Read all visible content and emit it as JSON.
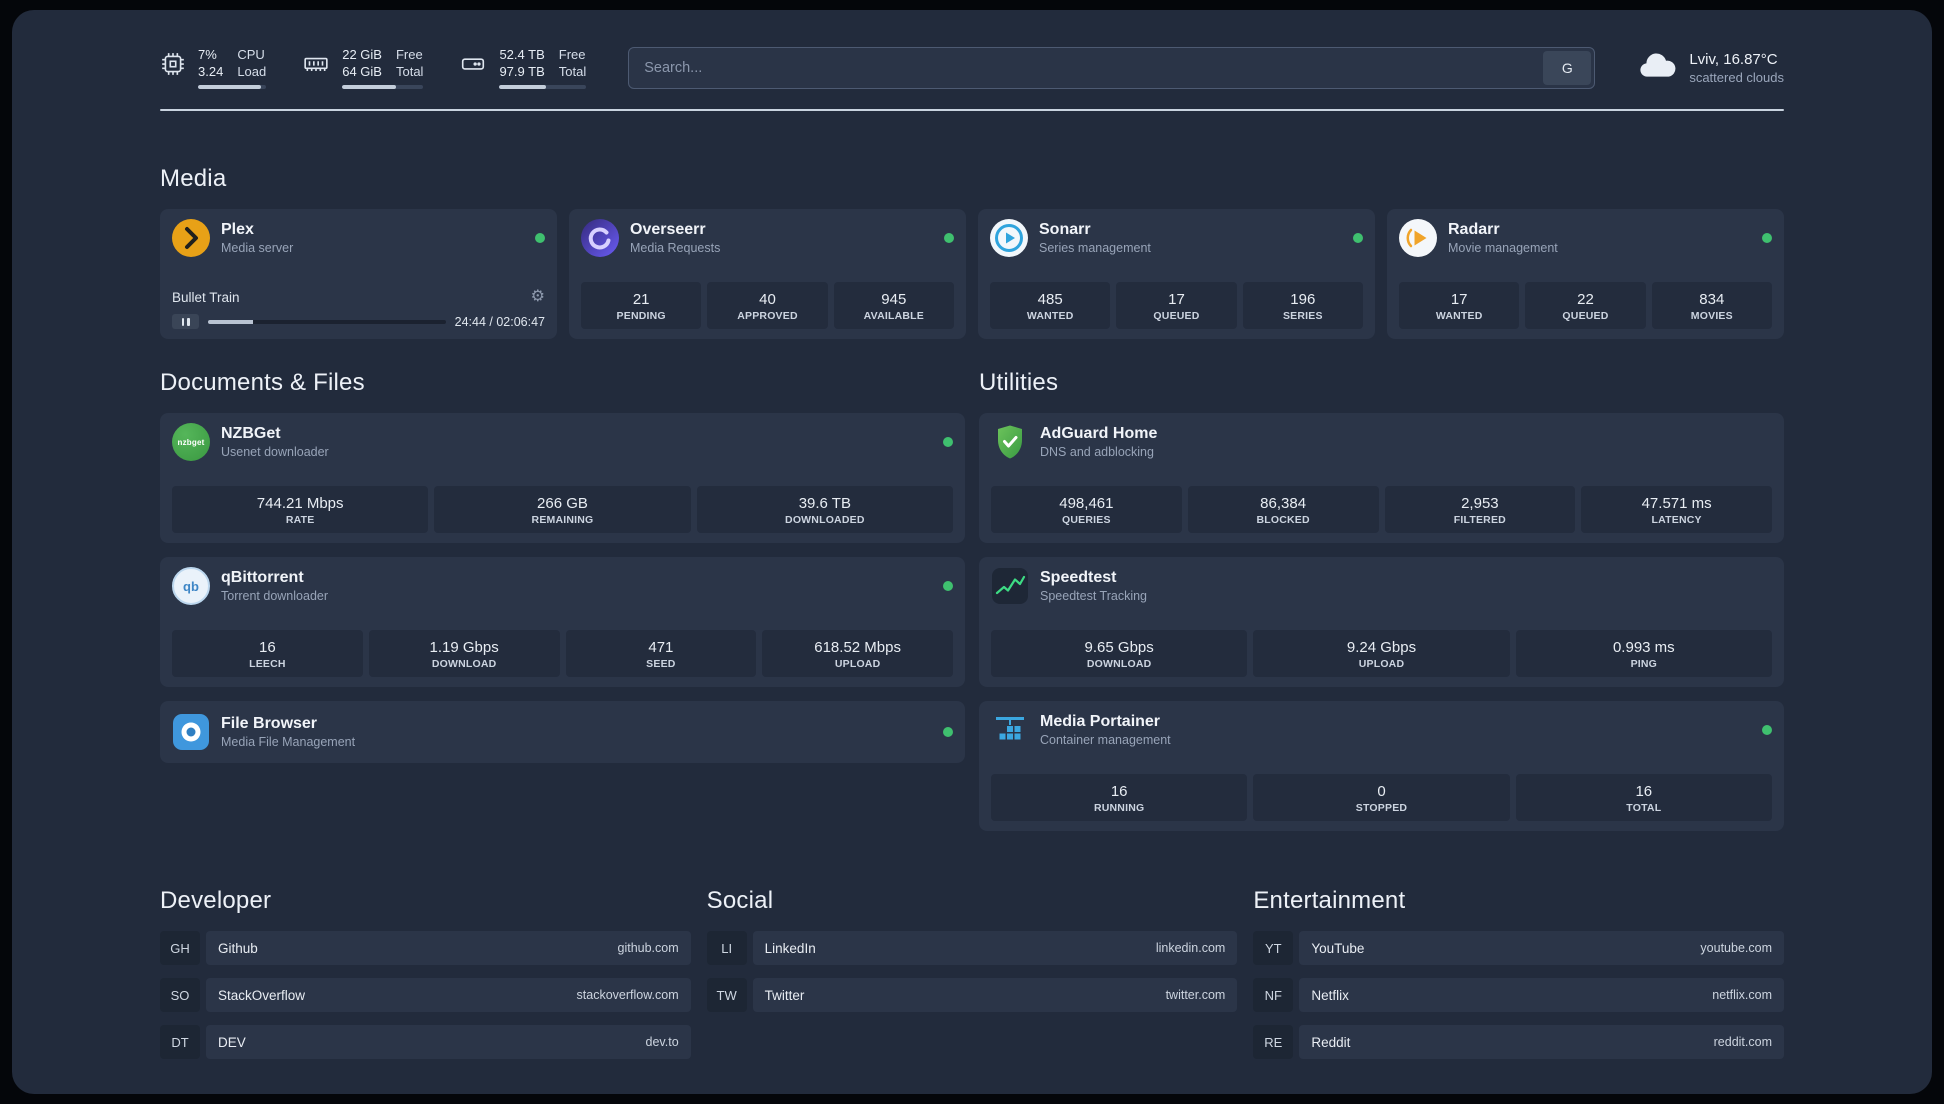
{
  "topbar": {
    "cpu": {
      "value1": "7%",
      "value2": "3.24",
      "label1": "CPU",
      "label2": "Load",
      "fill": 93
    },
    "memory": {
      "value1": "22 GiB",
      "value2": "64 GiB",
      "label1": "Free",
      "label2": "Total",
      "fill": 66
    },
    "disk": {
      "value1": "52.4 TB",
      "value2": "97.9 TB",
      "label1": "Free",
      "label2": "Total",
      "fill": 54
    },
    "search": {
      "placeholder": "Search...",
      "provider": "G"
    },
    "weather": {
      "location": "Lviv, 16.87°C",
      "condition": "scattered clouds"
    }
  },
  "icons": {
    "gear": "⚙"
  },
  "headings": {
    "media": "Media",
    "documents": "Documents & Files",
    "utilities": "Utilities",
    "developer": "Developer",
    "social": "Social",
    "entertainment": "Entertainment"
  },
  "services": {
    "plex": {
      "name": "Plex",
      "subtitle": "Media server",
      "now_playing": "Bullet Train",
      "elapsed": "24:44 / 02:06:47",
      "progress": 19
    },
    "overseerr": {
      "name": "Overseerr",
      "subtitle": "Media Requests",
      "stats": [
        {
          "value": "21",
          "label": "PENDING"
        },
        {
          "value": "40",
          "label": "APPROVED"
        },
        {
          "value": "945",
          "label": "AVAILABLE"
        }
      ]
    },
    "sonarr": {
      "name": "Sonarr",
      "subtitle": "Series management",
      "stats": [
        {
          "value": "485",
          "label": "WANTED"
        },
        {
          "value": "17",
          "label": "QUEUED"
        },
        {
          "value": "196",
          "label": "SERIES"
        }
      ]
    },
    "radarr": {
      "name": "Radarr",
      "subtitle": "Movie management",
      "stats": [
        {
          "value": "17",
          "label": "WANTED"
        },
        {
          "value": "22",
          "label": "QUEUED"
        },
        {
          "value": "834",
          "label": "MOVIES"
        }
      ]
    },
    "nzbget": {
      "name": "NZBGet",
      "subtitle": "Usenet downloader",
      "icon_text": "nzbget",
      "stats": [
        {
          "value": "744.21 Mbps",
          "label": "RATE"
        },
        {
          "value": "266 GB",
          "label": "REMAINING"
        },
        {
          "value": "39.6 TB",
          "label": "DOWNLOADED"
        }
      ]
    },
    "qbittorrent": {
      "name": "qBittorrent",
      "subtitle": "Torrent downloader",
      "icon_text": "qb",
      "stats": [
        {
          "value": "16",
          "label": "LEECH"
        },
        {
          "value": "1.19 Gbps",
          "label": "DOWNLOAD"
        },
        {
          "value": "471",
          "label": "SEED"
        },
        {
          "value": "618.52 Mbps",
          "label": "UPLOAD"
        }
      ]
    },
    "filebrowser": {
      "name": "File Browser",
      "subtitle": "Media File Management"
    },
    "adguard": {
      "name": "AdGuard Home",
      "subtitle": "DNS and adblocking",
      "stats": [
        {
          "value": "498,461",
          "label": "QUERIES"
        },
        {
          "value": "86,384",
          "label": "BLOCKED"
        },
        {
          "value": "2,953",
          "label": "FILTERED"
        },
        {
          "value": "47.571 ms",
          "label": "LATENCY"
        }
      ]
    },
    "speedtest": {
      "name": "Speedtest",
      "subtitle": "Speedtest Tracking",
      "stats": [
        {
          "value": "9.65 Gbps",
          "label": "DOWNLOAD"
        },
        {
          "value": "9.24 Gbps",
          "label": "UPLOAD"
        },
        {
          "value": "0.993 ms",
          "label": "PING"
        }
      ]
    },
    "portainer": {
      "name": "Media Portainer",
      "subtitle": "Container management",
      "stats": [
        {
          "value": "16",
          "label": "RUNNING"
        },
        {
          "value": "0",
          "label": "STOPPED"
        },
        {
          "value": "16",
          "label": "TOTAL"
        }
      ]
    }
  },
  "bookmarks": {
    "developer": [
      {
        "abbr": "GH",
        "name": "Github",
        "url": "github.com"
      },
      {
        "abbr": "SO",
        "name": "StackOverflow",
        "url": "stackoverflow.com"
      },
      {
        "abbr": "DT",
        "name": "DEV",
        "url": "dev.to"
      }
    ],
    "social": [
      {
        "abbr": "LI",
        "name": "LinkedIn",
        "url": "linkedin.com"
      },
      {
        "abbr": "TW",
        "name": "Twitter",
        "url": "twitter.com"
      }
    ],
    "entertainment": [
      {
        "abbr": "YT",
        "name": "YouTube",
        "url": "youtube.com"
      },
      {
        "abbr": "NF",
        "name": "Netflix",
        "url": "netflix.com"
      },
      {
        "abbr": "RE",
        "name": "Reddit",
        "url": "reddit.com"
      }
    ]
  }
}
